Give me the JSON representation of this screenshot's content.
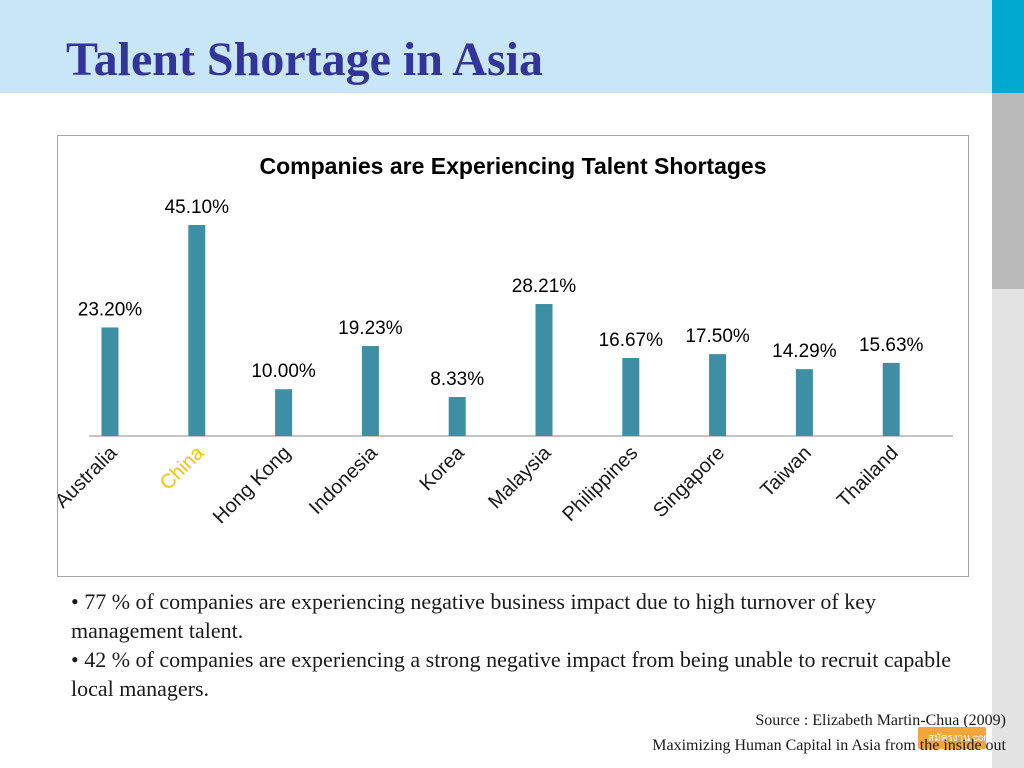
{
  "slide": {
    "title": "Talent Shortage in Asia"
  },
  "chart_data": {
    "type": "bar",
    "title": "Companies are Experiencing Talent Shortages",
    "categories": [
      "Australia",
      "China",
      "Hong Kong",
      "Indonesia",
      "Korea",
      "Malaysia",
      "Philippines",
      "Singapore",
      "Taiwan",
      "Thailand"
    ],
    "values": [
      23.2,
      45.1,
      10.0,
      19.23,
      8.33,
      28.21,
      16.67,
      17.5,
      14.29,
      15.63
    ],
    "data_labels": [
      "23.20%",
      "45.10%",
      "10.00%",
      "19.23%",
      "8.33%",
      "28.21%",
      "16.67%",
      "17.50%",
      "14.29%",
      "15.63%"
    ],
    "ylim": [
      0,
      45.1
    ],
    "grid": false,
    "bar_color": "#3e8ea4",
    "highlight_category": "China",
    "highlight_color": "#f5c400",
    "tick_color": "#1a1a1a"
  },
  "bullets": [
    "• 77 % of companies are experiencing negative business impact due to high turnover of key management talent.",
    "• 42 % of companies are experiencing a strong negative impact from being unable to recruit capable local managers."
  ],
  "source": {
    "line1": "Source : Elizabeth Martin-Chua (2009)",
    "line2": "Maximizing Human Capital in Asia from the inside out"
  },
  "badge": {
    "text": "สมัครงาน.com"
  }
}
